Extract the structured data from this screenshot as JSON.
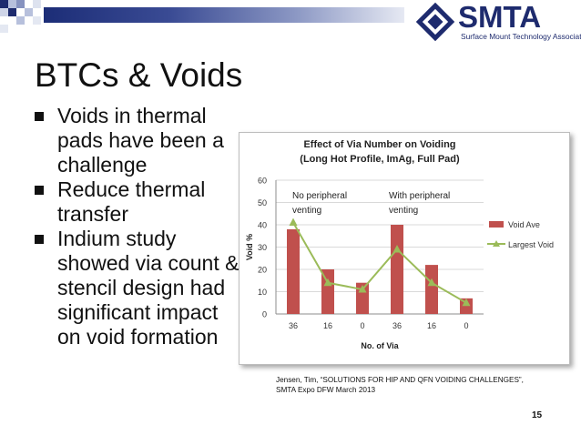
{
  "header": {
    "logo_text": "SMTA",
    "logo_tagline": "Surface Mount Technology Association",
    "colors": {
      "navy": "#1e2b6e",
      "band_dark": "#1c2d77",
      "band_light": "#e6e9f3"
    }
  },
  "slide": {
    "title": "BTCs & Voids",
    "bullets": [
      {
        "text": "Voids in thermal pads have been a challenge"
      },
      {
        "text": "Reduce thermal transfer"
      },
      {
        "text": "Indium study showed via count & stencil design had significant impact on void formation"
      }
    ],
    "citation_line1": "Jensen, Tim, “SOLUTIONS FOR HIP AND QFN VOIDING CHALLENGES”,",
    "citation_line2": "SMTA Expo DFW March 2013",
    "page_number": "15"
  },
  "chart_data": {
    "type": "bar",
    "title": "Effect of Via Number on Voiding",
    "subtitle": "(Long Hot Profile, ImAg, Full Pad)",
    "xlabel": "No. of Via",
    "ylabel": "Void %",
    "ylim": [
      0,
      60
    ],
    "yticks": [
      "0",
      "10",
      "20",
      "30",
      "40",
      "50",
      "60"
    ],
    "categories": [
      "36",
      "16",
      "0",
      "36",
      "16",
      "0"
    ],
    "annotations": [
      {
        "line1": "No peripheral",
        "line2": "venting"
      },
      {
        "line1": "With peripheral",
        "line2": "venting"
      }
    ],
    "grid": true,
    "legend_position": "right",
    "series": [
      {
        "name": "Void Ave",
        "kind": "bar",
        "color": "#c0504d",
        "values": [
          38,
          20,
          14,
          40,
          22,
          7
        ]
      },
      {
        "name": "Largest Void",
        "kind": "line",
        "color": "#9bbb59",
        "values": [
          41,
          14,
          11,
          29,
          14,
          5
        ]
      }
    ]
  }
}
